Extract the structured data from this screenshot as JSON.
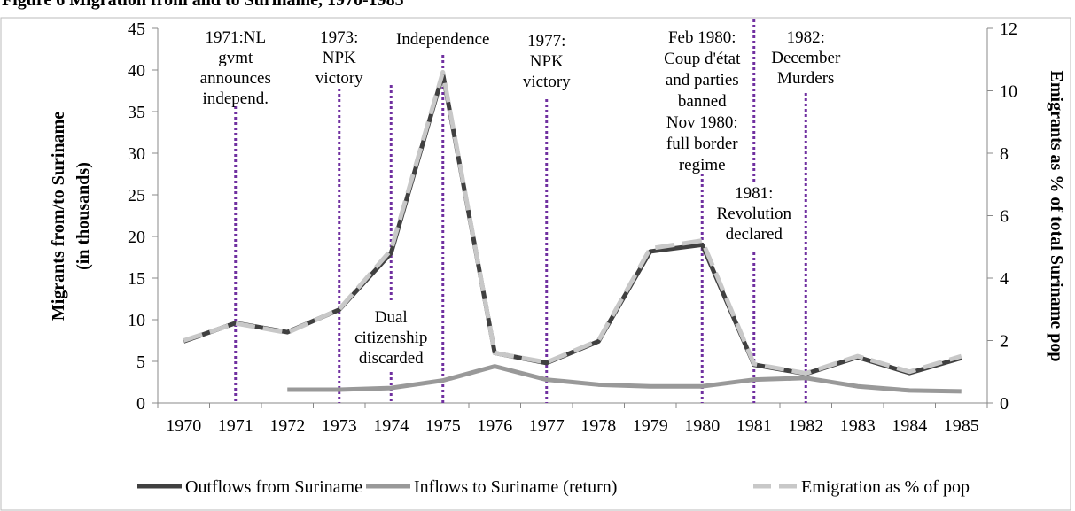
{
  "chart_data": {
    "type": "line",
    "title": "Figure 6 Migration from and to Suriname, 1970-1985",
    "y_label": [
      "Migrants from/to Suriname",
      "(in thousands)"
    ],
    "y2_label": "Emigrants as % of total Suriname pop",
    "categories": [
      "1970",
      "1971",
      "1972",
      "1973",
      "1974",
      "1975",
      "1976",
      "1977",
      "1978",
      "1979",
      "1980",
      "1981",
      "1982",
      "1983",
      "1984",
      "1985"
    ],
    "ylim": [
      0,
      45
    ],
    "yticks": [
      0,
      5,
      10,
      15,
      20,
      25,
      30,
      35,
      40,
      45
    ],
    "y2lim": [
      0,
      12
    ],
    "y2ticks": [
      0,
      2,
      4,
      6,
      8,
      10,
      12
    ],
    "legend": "bottom",
    "series": [
      {
        "name": "Outflows from Suriname",
        "color": "#404040",
        "values": [
          7.4,
          9.6,
          8.5,
          11.2,
          18,
          39.5,
          6,
          4.8,
          7.4,
          18.2,
          19,
          4.6,
          3.5,
          5.5,
          3.6,
          5.4
        ]
      },
      {
        "name": "Inflows to Suriname (return)",
        "color": "#999999",
        "values": [
          null,
          null,
          1.6,
          1.6,
          1.8,
          2.7,
          4.4,
          2.8,
          2.2,
          2.0,
          2.0,
          2.8,
          3.0,
          2.0,
          1.5,
          1.4
        ]
      },
      {
        "name": "Emigration as % of pop",
        "color": "#c8c8c8",
        "dashed": true,
        "axis": "y2",
        "values": [
          2.0,
          2.55,
          2.25,
          3.0,
          4.9,
          10.6,
          1.6,
          1.3,
          2.0,
          4.95,
          5.2,
          1.25,
          0.95,
          1.5,
          1.0,
          1.5
        ]
      }
    ],
    "event_color": "#7030a0",
    "events": [
      {
        "category": "1971",
        "text": [
          "1971:NL",
          "gvmt",
          "announces",
          "independ."
        ]
      },
      {
        "category": "1973",
        "text": [
          "1973:",
          "NPK",
          "victory"
        ]
      },
      {
        "category": "1975",
        "text": [
          "Independence"
        ]
      },
      {
        "category": "1977",
        "text": [
          "1977:",
          "NPK",
          "victory"
        ]
      },
      {
        "category": "1980",
        "text": [
          "Feb 1980:",
          "Coup d'état",
          "and parties",
          "banned",
          "Nov 1980:",
          "full border",
          "regime"
        ]
      },
      {
        "category": "1981",
        "text": [
          "1981:",
          "Revolution",
          "declared"
        ]
      },
      {
        "category": "1982",
        "text": [
          "1982:",
          "December",
          "Murders"
        ]
      },
      {
        "category": "1974",
        "text": [
          "Dual",
          "citizenship",
          "discarded"
        ]
      }
    ]
  }
}
